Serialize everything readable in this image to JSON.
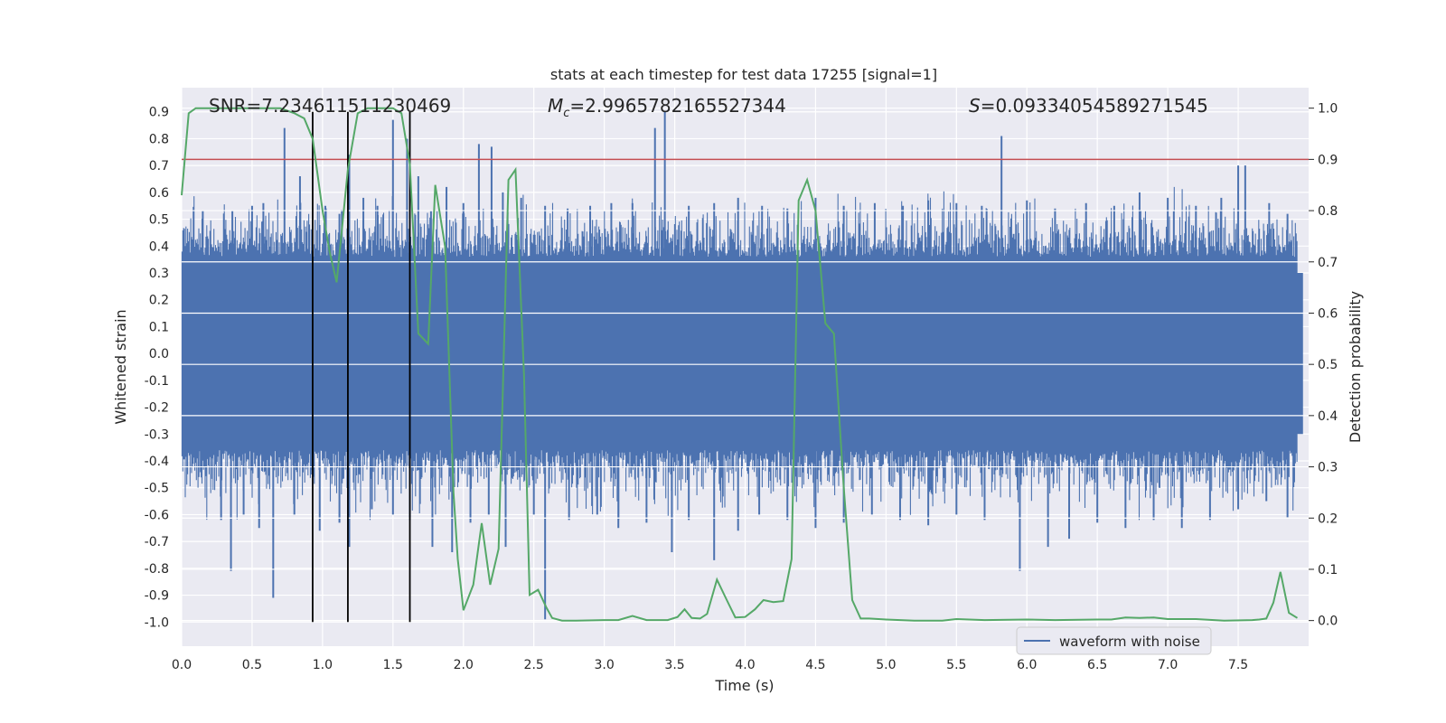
{
  "chart_data": {
    "type": "line",
    "title": "stats at each timestep for test data 17255 [signal=1]",
    "xlabel": "Time (s)",
    "ylabel_left": "Whitened strain",
    "ylabel_right": "Detection probability",
    "xlim": [
      0.0,
      8.0
    ],
    "ylim_left": [
      -1.09,
      0.99
    ],
    "ylim_right": [
      -0.05,
      1.04
    ],
    "x_ticks": [
      "0.0",
      "0.5",
      "1.0",
      "1.5",
      "2.0",
      "2.5",
      "3.0",
      "3.5",
      "4.0",
      "4.5",
      "5.0",
      "5.5",
      "6.0",
      "6.5",
      "7.0",
      "7.5"
    ],
    "y_ticks_left": [
      "0.9",
      "0.8",
      "0.7",
      "0.6",
      "0.5",
      "0.4",
      "0.3",
      "0.2",
      "0.1",
      "0.0",
      "-0.1",
      "-0.2",
      "-0.3",
      "-0.4",
      "-0.5",
      "-0.6",
      "-0.7",
      "-0.8",
      "-0.9",
      "-1.0"
    ],
    "y_ticks_right": [
      "1.0",
      "0.9",
      "0.8",
      "0.7",
      "0.6",
      "0.5",
      "0.4",
      "0.3",
      "0.2",
      "0.1",
      "0.0"
    ],
    "annotations": {
      "snr": "SNR=7.234611511230469",
      "mc_symbol": "M",
      "mc_sub": "c",
      "mc_value": "=2.9965782165527344",
      "s_symbol": "S",
      "s_value": "=0.09334054589271545"
    },
    "legend": {
      "label": "waveform with noise",
      "placement": "lower-right"
    },
    "threshold": {
      "value_right": 0.9,
      "color": "#c44e52"
    },
    "vertical_markers": {
      "x": [
        0.93,
        1.18,
        1.62
      ],
      "ymin": -1.0,
      "ymax": 0.9,
      "color": "#000000"
    },
    "waveform": {
      "name": "waveform with noise",
      "color": "#4c72b0",
      "spikes_high": [
        [
          0.15,
          0.53
        ],
        [
          0.36,
          0.53
        ],
        [
          0.5,
          0.55
        ],
        [
          0.58,
          0.56
        ],
        [
          0.73,
          0.84
        ],
        [
          0.84,
          0.66
        ],
        [
          1.02,
          0.55
        ],
        [
          1.12,
          0.52
        ],
        [
          1.19,
          0.74
        ],
        [
          1.29,
          0.58
        ],
        [
          1.39,
          0.55
        ],
        [
          1.5,
          0.87
        ],
        [
          1.6,
          0.8
        ],
        [
          1.68,
          0.66
        ],
        [
          1.77,
          0.53
        ],
        [
          1.88,
          0.62
        ],
        [
          2.0,
          0.56
        ],
        [
          2.11,
          0.78
        ],
        [
          2.2,
          0.77
        ],
        [
          2.28,
          0.6
        ],
        [
          2.41,
          0.58
        ],
        [
          2.58,
          0.55
        ],
        [
          2.74,
          0.54
        ],
        [
          2.9,
          0.55
        ],
        [
          3.05,
          0.56
        ],
        [
          3.2,
          0.56
        ],
        [
          3.36,
          0.84
        ],
        [
          3.43,
          0.9
        ],
        [
          3.6,
          0.55
        ],
        [
          3.78,
          0.56
        ],
        [
          3.95,
          0.58
        ],
        [
          4.12,
          0.55
        ],
        [
          4.3,
          0.54
        ],
        [
          4.5,
          0.58
        ],
        [
          4.7,
          0.55
        ],
        [
          4.92,
          0.56
        ],
        [
          5.12,
          0.55
        ],
        [
          5.3,
          0.57
        ],
        [
          5.5,
          0.56
        ],
        [
          5.68,
          0.55
        ],
        [
          5.82,
          0.81
        ],
        [
          6.0,
          0.57
        ],
        [
          6.2,
          0.54
        ],
        [
          6.42,
          0.56
        ],
        [
          6.62,
          0.55
        ],
        [
          6.8,
          0.6
        ],
        [
          7.0,
          0.58
        ],
        [
          7.2,
          0.55
        ],
        [
          7.38,
          0.58
        ],
        [
          7.5,
          0.7
        ],
        [
          7.55,
          0.7
        ],
        [
          7.72,
          0.56
        ],
        [
          7.85,
          0.52
        ]
      ],
      "spikes_low": [
        [
          0.12,
          -0.46
        ],
        [
          0.28,
          -0.62
        ],
        [
          0.35,
          -0.81
        ],
        [
          0.44,
          -0.6
        ],
        [
          0.55,
          -0.65
        ],
        [
          0.65,
          -0.91
        ],
        [
          0.8,
          -0.6
        ],
        [
          0.98,
          -0.66
        ],
        [
          1.12,
          -0.63
        ],
        [
          1.19,
          -0.72
        ],
        [
          1.35,
          -0.58
        ],
        [
          1.5,
          -0.6
        ],
        [
          1.62,
          -0.62
        ],
        [
          1.78,
          -0.72
        ],
        [
          1.92,
          -0.74
        ],
        [
          2.05,
          -0.63
        ],
        [
          2.18,
          -0.6
        ],
        [
          2.3,
          -0.72
        ],
        [
          2.5,
          -0.6
        ],
        [
          2.58,
          -0.99
        ],
        [
          2.75,
          -0.62
        ],
        [
          2.95,
          -0.6
        ],
        [
          3.1,
          -0.65
        ],
        [
          3.3,
          -0.63
        ],
        [
          3.48,
          -0.74
        ],
        [
          3.6,
          -0.62
        ],
        [
          3.78,
          -0.77
        ],
        [
          3.95,
          -0.66
        ],
        [
          4.1,
          -0.6
        ],
        [
          4.3,
          -0.62
        ],
        [
          4.5,
          -0.65
        ],
        [
          4.7,
          -0.63
        ],
        [
          4.9,
          -0.6
        ],
        [
          5.1,
          -0.62
        ],
        [
          5.3,
          -0.64
        ],
        [
          5.5,
          -0.6
        ],
        [
          5.7,
          -0.62
        ],
        [
          5.95,
          -0.81
        ],
        [
          6.15,
          -0.72
        ],
        [
          6.3,
          -0.69
        ],
        [
          6.5,
          -0.63
        ],
        [
          6.7,
          -0.65
        ],
        [
          6.9,
          -0.62
        ],
        [
          7.1,
          -0.65
        ],
        [
          7.3,
          -0.62
        ],
        [
          7.5,
          -0.58
        ],
        [
          7.7,
          -0.55
        ],
        [
          7.85,
          -0.61
        ]
      ]
    },
    "probability": {
      "name": "detection probability",
      "color": "#55a868",
      "x": [
        0.0,
        0.05,
        0.1,
        0.2,
        0.3,
        0.4,
        0.5,
        0.6,
        0.7,
        0.8,
        0.87,
        0.93,
        1.0,
        1.05,
        1.1,
        1.18,
        1.25,
        1.32,
        1.4,
        1.5,
        1.56,
        1.62,
        1.68,
        1.75,
        1.8,
        1.87,
        1.93,
        1.96,
        2.0,
        2.07,
        2.13,
        2.19,
        2.25,
        2.32,
        2.37,
        2.43,
        2.47,
        2.53,
        2.59,
        2.63,
        2.7,
        2.8,
        3.0,
        3.1,
        3.2,
        3.3,
        3.45,
        3.52,
        3.57,
        3.62,
        3.68,
        3.73,
        3.8,
        3.87,
        3.93,
        4.0,
        4.07,
        4.13,
        4.2,
        4.27,
        4.33,
        4.38,
        4.44,
        4.5,
        4.57,
        4.63,
        4.7,
        4.76,
        4.82,
        4.88,
        5.0,
        5.2,
        5.4,
        5.5,
        5.7,
        6.0,
        6.2,
        6.5,
        6.6,
        6.7,
        6.8,
        6.9,
        7.0,
        7.2,
        7.4,
        7.6,
        7.65,
        7.7,
        7.75,
        7.8,
        7.86,
        7.92
      ],
      "y": [
        0.83,
        0.99,
        1.0,
        1.0,
        1.0,
        1.0,
        1.0,
        1.0,
        1.0,
        0.99,
        0.98,
        0.94,
        0.8,
        0.72,
        0.66,
        0.88,
        0.99,
        1.0,
        1.0,
        1.0,
        0.99,
        0.89,
        0.56,
        0.54,
        0.85,
        0.73,
        0.25,
        0.12,
        0.02,
        0.07,
        0.19,
        0.07,
        0.14,
        0.86,
        0.88,
        0.48,
        0.05,
        0.06,
        0.025,
        0.005,
        0.0,
        0.0,
        0.001,
        0.001,
        0.009,
        0.001,
        0.001,
        0.007,
        0.022,
        0.005,
        0.004,
        0.013,
        0.08,
        0.04,
        0.006,
        0.007,
        0.022,
        0.04,
        0.036,
        0.038,
        0.12,
        0.82,
        0.86,
        0.8,
        0.58,
        0.56,
        0.26,
        0.04,
        0.004,
        0.004,
        0.002,
        0.0,
        0.0,
        0.003,
        0.001,
        0.002,
        0.001,
        0.002,
        0.002,
        0.006,
        0.005,
        0.006,
        0.003,
        0.003,
        0.0,
        0.001,
        0.002,
        0.004,
        0.035,
        0.095,
        0.015,
        0.005
      ]
    }
  }
}
